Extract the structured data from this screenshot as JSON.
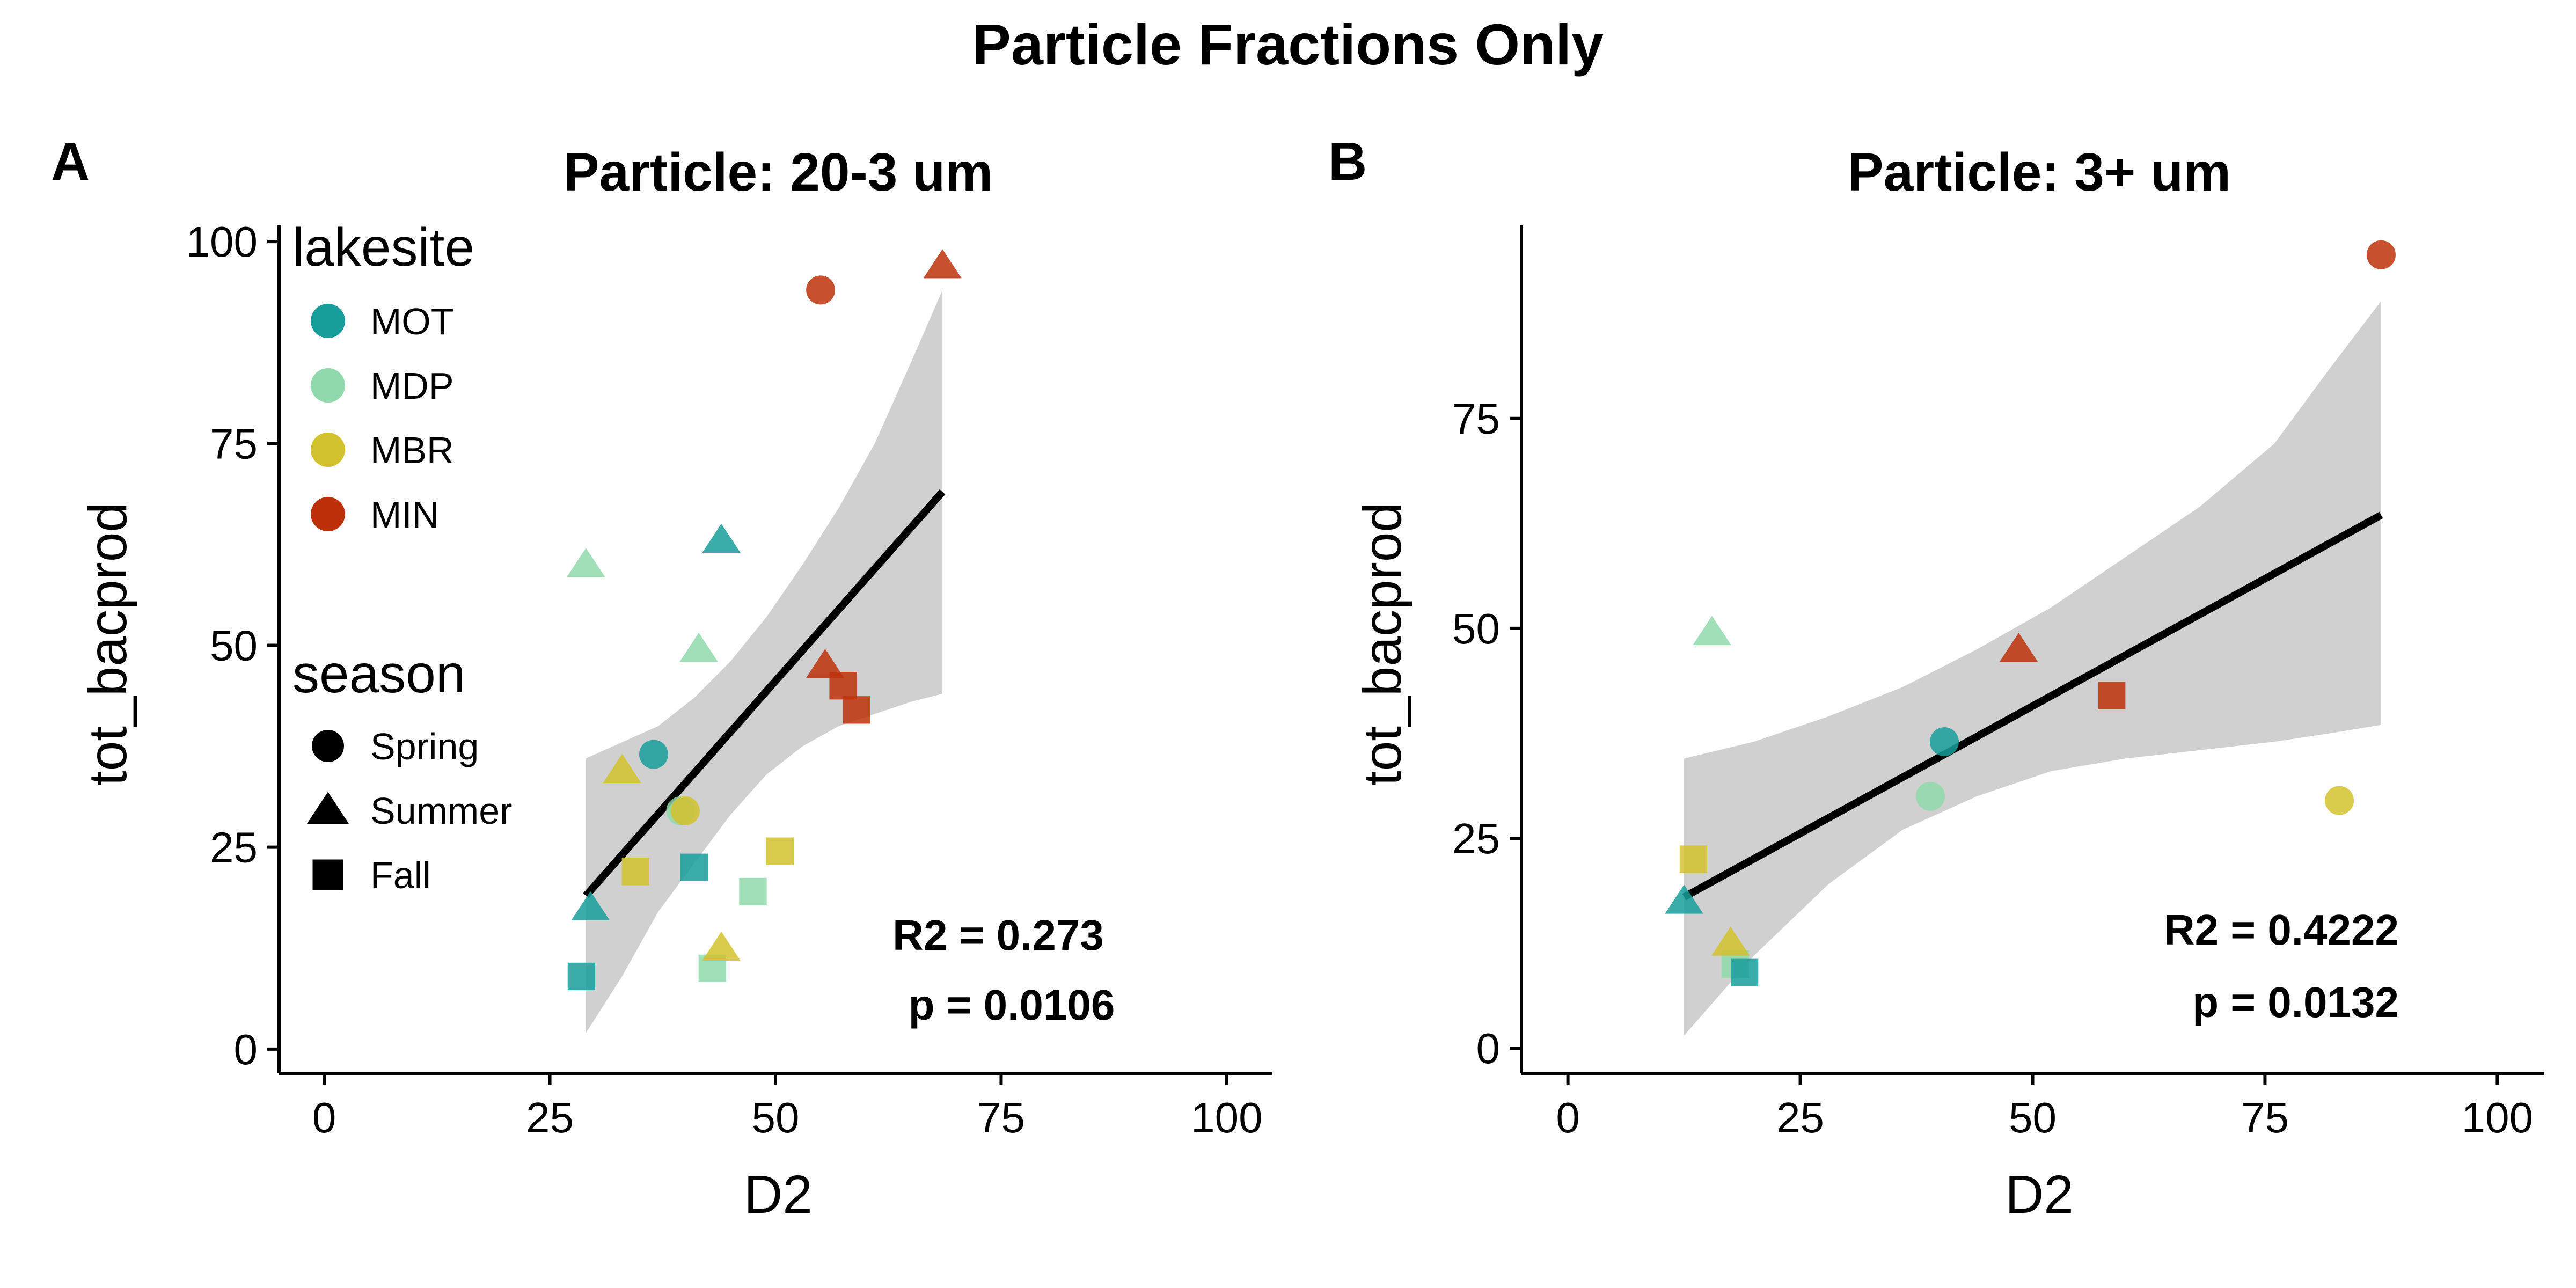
{
  "main_title": "Particle Fractions Only",
  "legend": {
    "color_title": "lakesite",
    "shape_title": "season",
    "lakesites": [
      {
        "name": "MOT",
        "color": "#179E9A"
      },
      {
        "name": "MDP",
        "color": "#8FD9AC"
      },
      {
        "name": "MBR",
        "color": "#D2C22D"
      },
      {
        "name": "MIN",
        "color": "#BD310A"
      }
    ],
    "seasons": [
      {
        "name": "Spring",
        "shape": "circle"
      },
      {
        "name": "Summer",
        "shape": "triangle"
      },
      {
        "name": "Fall",
        "shape": "square"
      }
    ]
  },
  "chart_data": [
    {
      "type": "scatter",
      "panel_label": "A",
      "title": "Particle: 20-3 um",
      "xlabel": "D2",
      "ylabel": "tot_bacprod",
      "xlim": [
        -5,
        105
      ],
      "ylim": [
        -3,
        102
      ],
      "xticks": [
        0,
        25,
        50,
        75,
        100
      ],
      "yticks": [
        0,
        25,
        50,
        75,
        100
      ],
      "grid": false,
      "legend_position": "top-left",
      "points": [
        {
          "x": 55,
          "y": 94,
          "lakesite": "MIN",
          "season": "Spring"
        },
        {
          "x": 68.5,
          "y": 97,
          "lakesite": "MIN",
          "season": "Summer"
        },
        {
          "x": 55.5,
          "y": 47.5,
          "lakesite": "MIN",
          "season": "Summer"
        },
        {
          "x": 57.5,
          "y": 45,
          "lakesite": "MIN",
          "season": "Fall"
        },
        {
          "x": 59,
          "y": 42,
          "lakesite": "MIN",
          "season": "Fall"
        },
        {
          "x": 29,
          "y": 60,
          "lakesite": "MDP",
          "season": "Summer"
        },
        {
          "x": 41.5,
          "y": 49.5,
          "lakesite": "MDP",
          "season": "Summer"
        },
        {
          "x": 39.5,
          "y": 29.5,
          "lakesite": "MDP",
          "season": "Spring"
        },
        {
          "x": 47.5,
          "y": 19.5,
          "lakesite": "MDP",
          "season": "Fall"
        },
        {
          "x": 43,
          "y": 10,
          "lakesite": "MDP",
          "season": "Fall"
        },
        {
          "x": 44,
          "y": 63,
          "lakesite": "MOT",
          "season": "Summer"
        },
        {
          "x": 36.5,
          "y": 36.5,
          "lakesite": "MOT",
          "season": "Spring"
        },
        {
          "x": 41,
          "y": 22.5,
          "lakesite": "MOT",
          "season": "Fall"
        },
        {
          "x": 29.5,
          "y": 17.5,
          "lakesite": "MOT",
          "season": "Summer"
        },
        {
          "x": 28.5,
          "y": 9,
          "lakesite": "MOT",
          "season": "Fall"
        },
        {
          "x": 33,
          "y": 34.5,
          "lakesite": "MBR",
          "season": "Summer"
        },
        {
          "x": 40,
          "y": 29.5,
          "lakesite": "MBR",
          "season": "Spring"
        },
        {
          "x": 34.5,
          "y": 22,
          "lakesite": "MBR",
          "season": "Fall"
        },
        {
          "x": 50.5,
          "y": 24.5,
          "lakesite": "MBR",
          "season": "Fall"
        },
        {
          "x": 44,
          "y": 12.5,
          "lakesite": "MBR",
          "season": "Summer"
        }
      ],
      "fit": {
        "x": [
          29,
          68.5
        ],
        "y": [
          19,
          69
        ]
      },
      "band": {
        "x": [
          29,
          33,
          37,
          41,
          45,
          49,
          53,
          57,
          61,
          65,
          68.5
        ],
        "upper": [
          36,
          38,
          40,
          43.5,
          48,
          53.5,
          60,
          67,
          75,
          85,
          94
        ],
        "lower": [
          2,
          9,
          17,
          23,
          29,
          34,
          37.5,
          40,
          41.5,
          43,
          44
        ]
      },
      "annotations": [
        "R2 = 0.273",
        "p = 0.0106"
      ]
    },
    {
      "type": "scatter",
      "panel_label": "B",
      "title": "Particle: 3+ um",
      "xlabel": "D2",
      "ylabel": "tot_bacprod",
      "xlim": [
        -5,
        105
      ],
      "ylim": [
        -3,
        98
      ],
      "xticks": [
        0,
        25,
        50,
        75,
        100
      ],
      "yticks": [
        0,
        25,
        50,
        75
      ],
      "grid": false,
      "points": [
        {
          "x": 87.5,
          "y": 94.5,
          "lakesite": "MIN",
          "season": "Spring"
        },
        {
          "x": 48.5,
          "y": 47.5,
          "lakesite": "MIN",
          "season": "Summer"
        },
        {
          "x": 58.5,
          "y": 42,
          "lakesite": "MIN",
          "season": "Fall"
        },
        {
          "x": 15.5,
          "y": 49.5,
          "lakesite": "MDP",
          "season": "Summer"
        },
        {
          "x": 39,
          "y": 30,
          "lakesite": "MDP",
          "season": "Spring"
        },
        {
          "x": 18,
          "y": 10,
          "lakesite": "MDP",
          "season": "Fall"
        },
        {
          "x": 40.5,
          "y": 36.5,
          "lakesite": "MOT",
          "season": "Spring"
        },
        {
          "x": 12.5,
          "y": 17.5,
          "lakesite": "MOT",
          "season": "Summer"
        },
        {
          "x": 19,
          "y": 9,
          "lakesite": "MOT",
          "season": "Fall"
        },
        {
          "x": 83,
          "y": 29.5,
          "lakesite": "MBR",
          "season": "Spring"
        },
        {
          "x": 13.5,
          "y": 22.5,
          "lakesite": "MBR",
          "season": "Fall"
        },
        {
          "x": 17.5,
          "y": 12.5,
          "lakesite": "MBR",
          "season": "Summer"
        }
      ],
      "fit": {
        "x": [
          12.5,
          87.5
        ],
        "y": [
          18,
          63.5
        ]
      },
      "band": {
        "x": [
          12.5,
          20,
          28,
          36,
          44,
          52,
          60,
          68,
          76,
          82,
          87.5
        ],
        "upper": [
          34.5,
          36.5,
          39.5,
          43,
          47.5,
          52.5,
          58.5,
          64.5,
          72,
          81,
          89
        ],
        "lower": [
          1.5,
          11,
          19.5,
          26,
          30,
          33,
          34.5,
          35.5,
          36.5,
          37.5,
          38.5
        ]
      },
      "annotations": [
        "R2 = 0.4222",
        "p = 0.0132"
      ]
    }
  ]
}
